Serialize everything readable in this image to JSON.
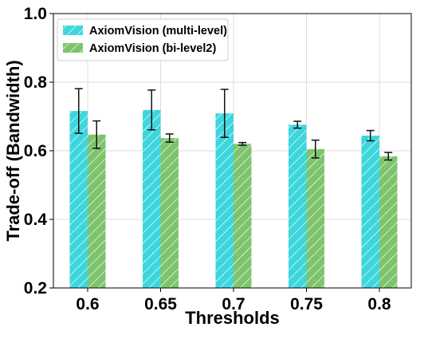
{
  "chart_data": {
    "type": "bar",
    "xlabel": "Thresholds",
    "ylabel": "Trade-off (Bandwidth)",
    "categories": [
      "0.6",
      "0.65",
      "0.7",
      "0.75",
      "0.8"
    ],
    "ylim": [
      0.2,
      1.0
    ],
    "yticks": [
      "0.2",
      "0.4",
      "0.6",
      "0.8",
      "1.0"
    ],
    "grid": true,
    "legend_position": "top-left",
    "series": [
      {
        "name": "AxiomVision (multi-level)",
        "color": "#3dd6dd",
        "values": [
          0.716,
          0.719,
          0.709,
          0.676,
          0.644
        ],
        "errors": [
          0.065,
          0.058,
          0.07,
          0.01,
          0.015
        ]
      },
      {
        "name": "AxiomVision (bi-level2)",
        "color": "#7dc46d",
        "values": [
          0.647,
          0.637,
          0.62,
          0.605,
          0.584
        ],
        "errors": [
          0.04,
          0.012,
          0.004,
          0.026,
          0.011
        ]
      }
    ]
  }
}
